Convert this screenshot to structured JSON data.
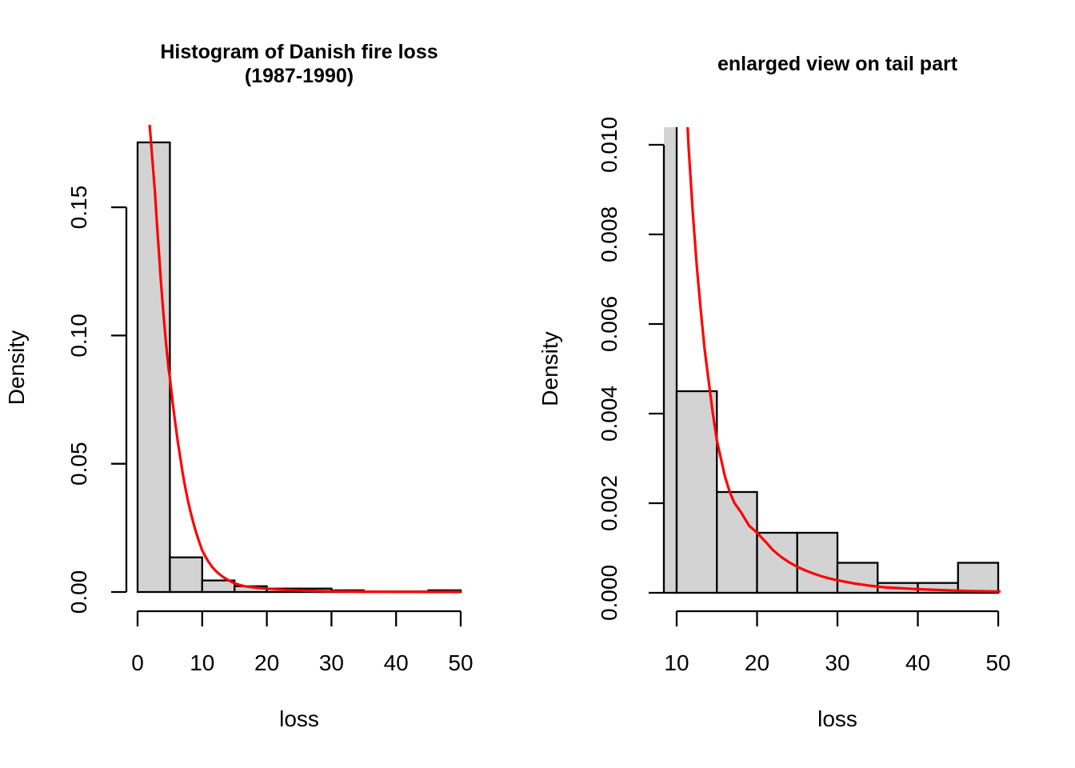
{
  "figure": {
    "background": "#ffffff",
    "text_color": "#000000"
  },
  "fitted_curve": {
    "name": "fitted-density-curve",
    "color": "#ff0000",
    "points": [
      [
        1.86,
        0.1822
      ],
      [
        2.0,
        0.178
      ],
      [
        2.2,
        0.1715
      ],
      [
        2.45,
        0.1635
      ],
      [
        2.7,
        0.1555
      ],
      [
        3.0,
        0.1435
      ],
      [
        3.3,
        0.1325
      ],
      [
        3.6,
        0.1215
      ],
      [
        4.0,
        0.1085
      ],
      [
        4.4,
        0.097
      ],
      [
        4.8,
        0.087
      ],
      [
        5.0,
        0.0836
      ],
      [
        5.4,
        0.0745
      ],
      [
        5.8,
        0.0665
      ],
      [
        6.2,
        0.059
      ],
      [
        6.6,
        0.0525
      ],
      [
        7.0,
        0.046
      ],
      [
        7.4,
        0.0405
      ],
      [
        7.8,
        0.0355
      ],
      [
        8.2,
        0.0312
      ],
      [
        8.6,
        0.0273
      ],
      [
        9.0,
        0.0237
      ],
      [
        9.5,
        0.0198
      ],
      [
        10.0,
        0.0162
      ],
      [
        10.5,
        0.0138
      ],
      [
        11.0,
        0.0117
      ],
      [
        11.5,
        0.0099
      ],
      [
        12.0,
        0.0085
      ],
      [
        12.5,
        0.0073
      ],
      [
        13.0,
        0.0063
      ],
      [
        13.5,
        0.0054
      ],
      [
        14.0,
        0.0047
      ],
      [
        14.5,
        0.004
      ],
      [
        15.0,
        0.0034
      ],
      [
        15.5,
        0.003
      ],
      [
        16.0,
        0.0026
      ],
      [
        16.6,
        0.00225
      ],
      [
        17.2,
        0.002
      ],
      [
        18.0,
        0.0018
      ],
      [
        19.0,
        0.0015
      ],
      [
        20.0,
        0.00134
      ],
      [
        21.0,
        0.00115
      ],
      [
        22.0,
        0.00095
      ],
      [
        23.0,
        0.0008
      ],
      [
        24.0,
        0.00068
      ],
      [
        25.0,
        0.00058
      ],
      [
        26.0,
        0.0005
      ],
      [
        27.0,
        0.00043
      ],
      [
        28.0,
        0.00037
      ],
      [
        29.0,
        0.00032
      ],
      [
        30.0,
        0.00028
      ],
      [
        32.0,
        0.00021
      ],
      [
        34.0,
        0.00016
      ],
      [
        36.0,
        0.00012
      ],
      [
        38.0,
        0.0001
      ],
      [
        40.0,
        8e-05
      ],
      [
        43.0,
        6e-05
      ],
      [
        46.0,
        4e-05
      ],
      [
        50.0,
        3e-05
      ],
      [
        50.3,
        3e-05
      ]
    ]
  },
  "chart_data": [
    {
      "type": "bar",
      "subtype": "histogram-with-density-curve",
      "title_lines": [
        "Histogram of Danish fire loss",
        "(1987-1990)"
      ],
      "xlabel": "loss",
      "ylabel": "Density",
      "xlim": [
        0,
        50
      ],
      "ylim": [
        0,
        0.1753
      ],
      "grid": false,
      "bin_breaks": [
        0,
        5,
        10,
        15,
        20,
        25,
        30,
        35,
        40,
        45,
        50
      ],
      "bin_densities": [
        0.1753,
        0.0135,
        0.0045,
        0.00225,
        0.00134,
        0.00134,
        0.00067,
        0.00022,
        0.00022,
        0.00067
      ],
      "x_ticks": [
        0,
        10,
        20,
        30,
        40,
        50
      ],
      "x_tick_labels": [
        "0",
        "10",
        "20",
        "30",
        "40",
        "50"
      ],
      "y_ticks": [
        0,
        0.05,
        0.1,
        0.15
      ],
      "y_tick_labels": [
        "0.00",
        "0.05",
        "0.10",
        "0.15"
      ],
      "bar_fill": "#d3d3d3",
      "bar_border": "#000000",
      "curve_max_x": 50
    },
    {
      "type": "bar",
      "subtype": "histogram-with-density-curve",
      "title_lines": [
        "enlarged view on tail part"
      ],
      "xlabel": "loss",
      "ylabel": "Density",
      "xlim": [
        10,
        50
      ],
      "ylim": [
        0,
        0.01
      ],
      "grid": false,
      "bin_breaks": [
        0,
        5,
        10,
        15,
        20,
        25,
        30,
        35,
        40,
        45,
        50
      ],
      "bin_densities": [
        0.1753,
        0.0135,
        0.0045,
        0.00225,
        0.00134,
        0.00134,
        0.00067,
        0.00022,
        0.00022,
        0.00067
      ],
      "x_ticks": [
        10,
        20,
        30,
        40,
        50
      ],
      "x_tick_labels": [
        "10",
        "20",
        "30",
        "40",
        "50"
      ],
      "y_ticks": [
        0,
        0.002,
        0.004,
        0.006,
        0.008,
        0.01
      ],
      "y_tick_labels": [
        "0.000",
        "0.002",
        "0.004",
        "0.006",
        "0.008",
        "0.010"
      ],
      "bar_fill": "#d3d3d3",
      "bar_border": "#000000",
      "curve_max_x": 50.3
    }
  ]
}
